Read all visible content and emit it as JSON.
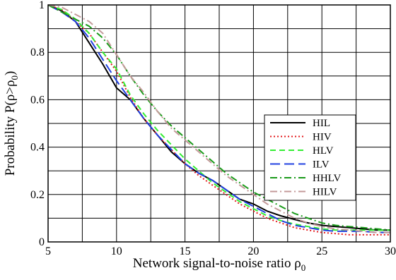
{
  "chart_data": {
    "type": "line",
    "xlabel": "Network signal-to-noise ratio ρ",
    "xlabel_subscript": "0",
    "ylabel": "Probability P(ρ>ρ",
    "ylabel_subscript": "0",
    "ylabel_close": ")",
    "xlim": [
      5,
      30
    ],
    "ylim": [
      0,
      1
    ],
    "x_ticks": [
      5,
      10,
      15,
      20,
      25,
      30
    ],
    "x_tick_labels": [
      "5",
      "10",
      "15",
      "20",
      "25",
      "30"
    ],
    "y_ticks": [
      0,
      0.2,
      0.4,
      0.6,
      0.8,
      1
    ],
    "y_tick_labels": [
      "0",
      "0.2",
      "0.4",
      "0.6",
      "0.8",
      "1"
    ],
    "grid": true,
    "legend_position": "right",
    "series": [
      {
        "name": "HIL",
        "color": "#000000",
        "dash": "solid",
        "x": [
          5,
          6,
          7,
          8,
          9,
          10,
          11,
          12,
          13,
          14,
          15,
          16,
          17,
          18,
          19,
          20,
          21,
          22,
          23,
          24,
          25,
          26,
          27,
          28,
          29,
          30
        ],
        "y": [
          1.0,
          0.975,
          0.93,
          0.84,
          0.75,
          0.65,
          0.6,
          0.52,
          0.45,
          0.38,
          0.33,
          0.29,
          0.26,
          0.22,
          0.18,
          0.16,
          0.13,
          0.11,
          0.095,
          0.08,
          0.07,
          0.065,
          0.06,
          0.055,
          0.05,
          0.05
        ]
      },
      {
        "name": "HIV",
        "color": "#e41a1c",
        "dash": "dotted",
        "x": [
          5,
          6,
          7,
          8,
          9,
          10,
          11,
          12,
          13,
          14,
          15,
          16,
          17,
          18,
          19,
          20,
          21,
          22,
          23,
          24,
          25,
          26,
          27,
          28,
          29,
          30
        ],
        "y": [
          1.0,
          0.98,
          0.93,
          0.88,
          0.8,
          0.72,
          0.61,
          0.52,
          0.45,
          0.39,
          0.33,
          0.28,
          0.24,
          0.2,
          0.16,
          0.13,
          0.1,
          0.08,
          0.06,
          0.05,
          0.04,
          0.035,
          0.03,
          0.03,
          0.03,
          0.03
        ]
      },
      {
        "name": "HLV",
        "color": "#33ee33",
        "dash": "dashed",
        "x": [
          5,
          6,
          7,
          8,
          9,
          10,
          11,
          12,
          13,
          14,
          15,
          16,
          17,
          18,
          19,
          20,
          21,
          22,
          23,
          24,
          25,
          26,
          27,
          28,
          29,
          30
        ],
        "y": [
          1.0,
          0.98,
          0.94,
          0.88,
          0.8,
          0.73,
          0.62,
          0.54,
          0.47,
          0.41,
          0.35,
          0.3,
          0.25,
          0.21,
          0.17,
          0.14,
          0.11,
          0.09,
          0.075,
          0.065,
          0.055,
          0.05,
          0.05,
          0.05,
          0.05,
          0.05
        ]
      },
      {
        "name": "ILV",
        "color": "#1f3fe0",
        "dash": "longdash",
        "x": [
          5,
          6,
          7,
          8,
          9,
          10,
          11,
          12,
          13,
          14,
          15,
          16,
          17,
          18,
          19,
          20,
          21,
          22,
          23,
          24,
          25,
          26,
          27,
          28,
          29,
          30
        ],
        "y": [
          1.0,
          0.97,
          0.93,
          0.86,
          0.77,
          0.68,
          0.6,
          0.52,
          0.45,
          0.39,
          0.33,
          0.29,
          0.26,
          0.22,
          0.18,
          0.15,
          0.12,
          0.09,
          0.07,
          0.06,
          0.05,
          0.045,
          0.045,
          0.045,
          0.04,
          0.04
        ]
      },
      {
        "name": "HHLV",
        "color": "#1a9a1a",
        "dash": "dashdot",
        "x": [
          5,
          6,
          7,
          8,
          9,
          10,
          11,
          12,
          13,
          14,
          15,
          16,
          17,
          18,
          19,
          20,
          21,
          22,
          23,
          24,
          25,
          26,
          27,
          28,
          29,
          30
        ],
        "y": [
          1.0,
          0.97,
          0.94,
          0.91,
          0.86,
          0.79,
          0.7,
          0.62,
          0.55,
          0.49,
          0.44,
          0.39,
          0.34,
          0.29,
          0.25,
          0.21,
          0.18,
          0.15,
          0.12,
          0.1,
          0.08,
          0.07,
          0.065,
          0.06,
          0.055,
          0.05
        ]
      },
      {
        "name": "HILV",
        "color": "#c49a9a",
        "dash": "dashdot",
        "x": [
          5,
          6,
          7,
          8,
          9,
          10,
          11,
          12,
          13,
          14,
          15,
          16,
          17,
          18,
          19,
          20,
          21,
          22,
          23,
          24,
          25,
          26,
          27,
          28,
          29,
          30
        ],
        "y": [
          1.0,
          0.99,
          0.96,
          0.93,
          0.88,
          0.79,
          0.7,
          0.63,
          0.55,
          0.48,
          0.43,
          0.38,
          0.33,
          0.28,
          0.24,
          0.2,
          0.16,
          0.13,
          0.1,
          0.08,
          0.065,
          0.055,
          0.05,
          0.045,
          0.04,
          0.04
        ]
      }
    ]
  }
}
